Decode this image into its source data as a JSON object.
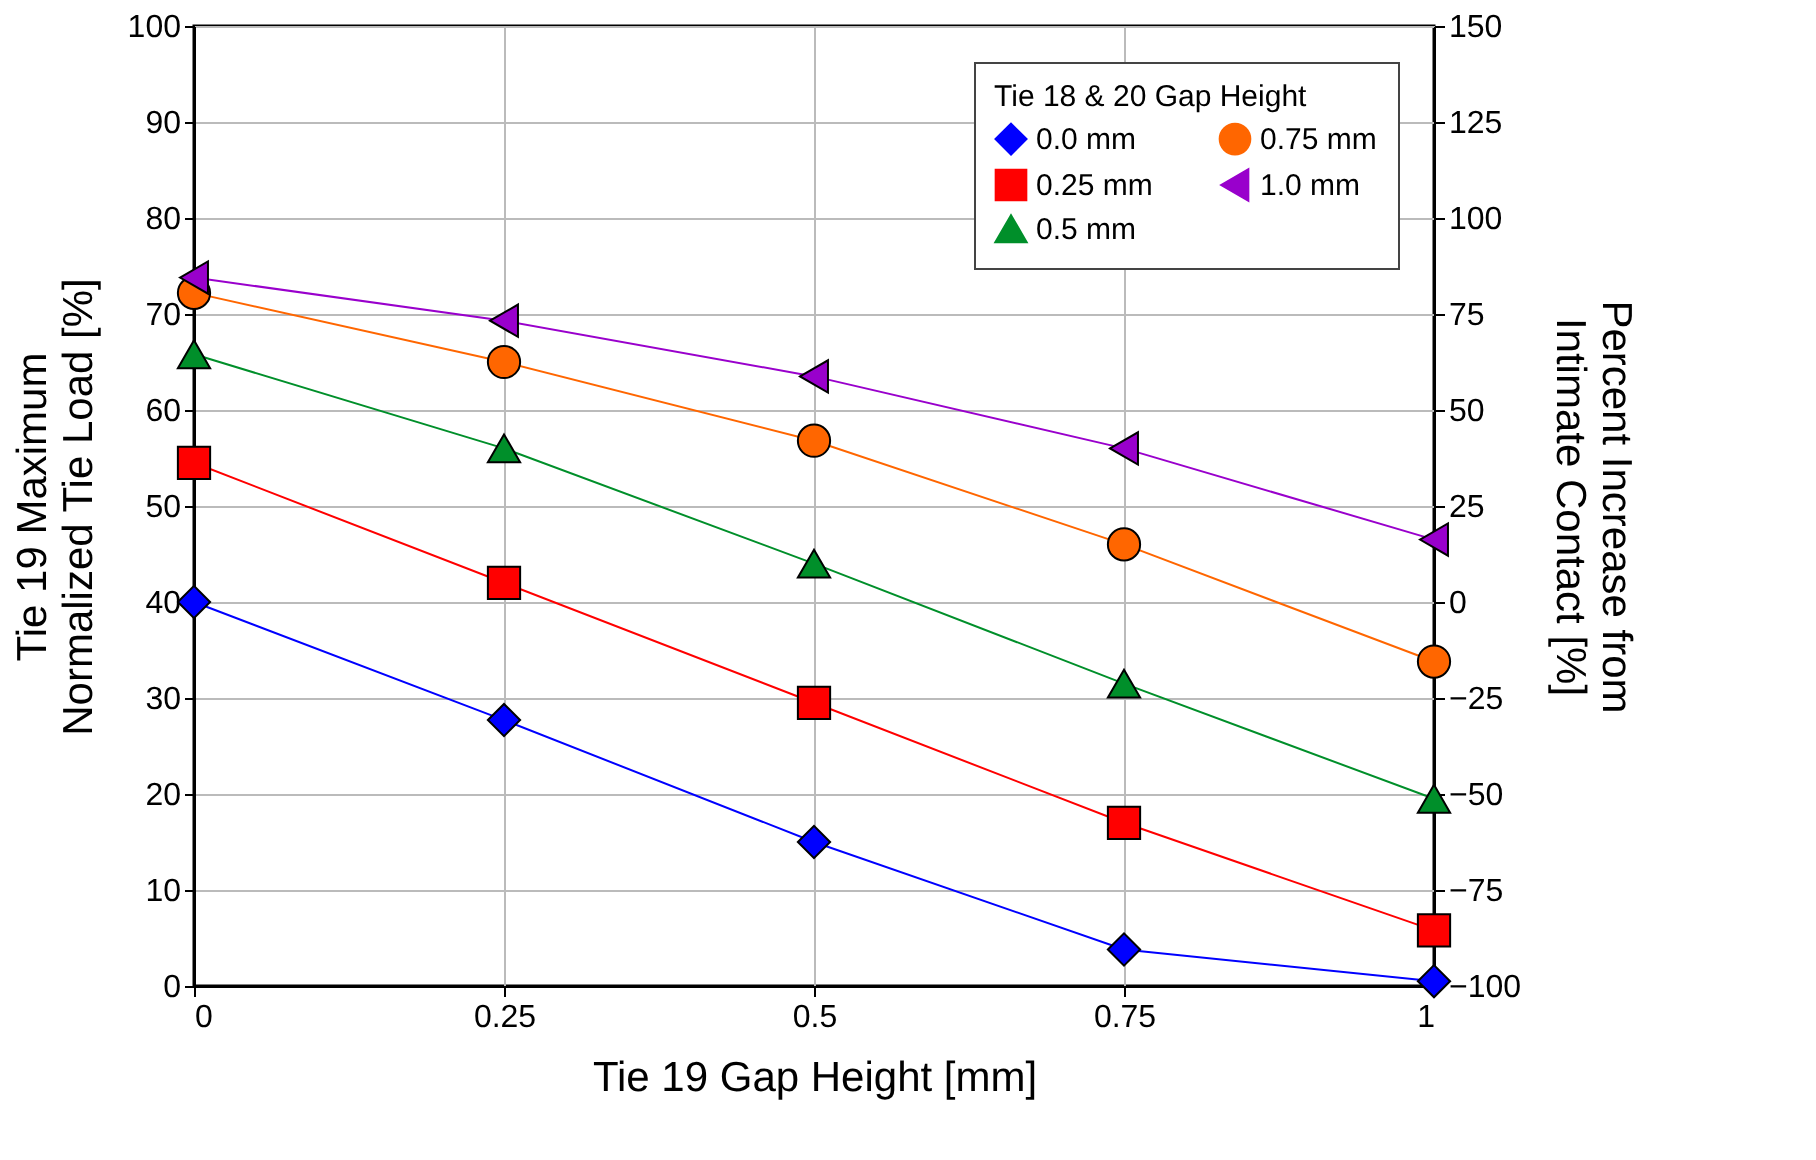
{
  "chart_data": {
    "type": "line",
    "xlabel": "Tie 19 Gap Height [mm]",
    "ylabel": "Tie 19 Maximum\nNormalized Tie Load [%]",
    "y2label": "Percent Increase from\nIntimate Contact [%]",
    "legend_title": "Tie 18 & 20 Gap Height",
    "x": [
      0,
      0.25,
      0.5,
      0.75,
      1
    ],
    "series": [
      {
        "name": "0.0 mm",
        "color": "#0000ff",
        "marker": "diamond",
        "values": [
          40,
          27.7,
          15,
          3.8,
          0.5
        ]
      },
      {
        "name": "0.25 mm",
        "color": "#ff0000",
        "marker": "square",
        "values": [
          54.5,
          42,
          29.5,
          17,
          5.8
        ]
      },
      {
        "name": "0.5 mm",
        "color": "#008f2a",
        "marker": "triangle",
        "values": [
          65.8,
          56,
          44,
          31.5,
          19.5
        ]
      },
      {
        "name": "0.75 mm",
        "color": "#ff6600",
        "marker": "circle",
        "values": [
          72.2,
          65,
          56.8,
          46,
          33.8
        ]
      },
      {
        "name": "1.0 mm",
        "color": "#9900cc",
        "marker": "triangle-left",
        "values": [
          73.8,
          69.3,
          63.5,
          56,
          46.5
        ]
      }
    ],
    "xlim": [
      0,
      1
    ],
    "xticks": [
      0,
      0.25,
      0.5,
      0.75,
      1
    ],
    "ylim": [
      0,
      100
    ],
    "yticks": [
      0,
      10,
      20,
      30,
      40,
      50,
      60,
      70,
      80,
      90,
      100
    ],
    "y2lim": [
      -100,
      150
    ],
    "y2ticks": [
      -100,
      -75,
      -50,
      -25,
      0,
      25,
      50,
      75,
      100,
      125,
      150
    ],
    "grid": true,
    "legend": "top right",
    "line_style": "solid"
  }
}
